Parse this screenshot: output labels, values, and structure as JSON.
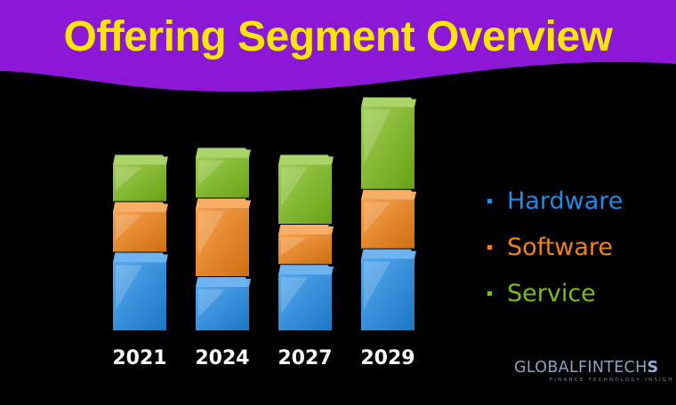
{
  "title": "Offering Segment Overview",
  "colors": {
    "banner": "#8a18d6",
    "title": "#ffe600",
    "background": "#000000",
    "hardware": "#1e8ce8",
    "software": "#f48213",
    "service": "#7dbd18"
  },
  "chart_data": {
    "type": "bar",
    "stacked": true,
    "categories": [
      "2021",
      "2024",
      "2027",
      "2029"
    ],
    "series": [
      {
        "name": "Hardware",
        "values": [
          78,
          50,
          64,
          82
        ]
      },
      {
        "name": "Software",
        "values": [
          46,
          78,
          34,
          56
        ]
      },
      {
        "name": "Service",
        "values": [
          42,
          46,
          68,
          94
        ]
      }
    ],
    "title": "Offering Segment Overview",
    "xlabel": "",
    "ylabel": "",
    "legend": "right",
    "grid": false,
    "value_scale": "relative (no axis printed)"
  },
  "legend": [
    "Hardware",
    "Software",
    "Service"
  ],
  "logo": {
    "brand_a": "GLOBALFINTECH",
    "brand_b": "S",
    "tagline": "FINANCE TECHNOLOGY INSIGH"
  }
}
